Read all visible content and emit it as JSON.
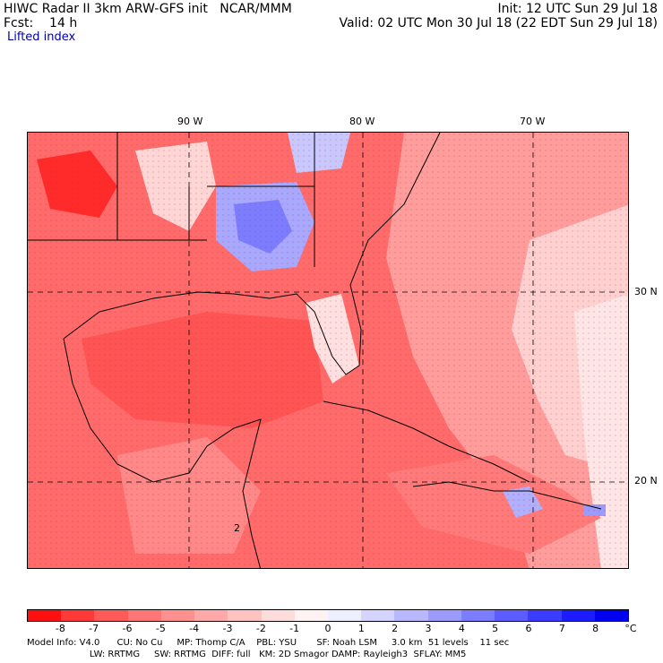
{
  "header": {
    "model_line": "HIWC Radar II 3km ARW-GFS init   NCAR/MMM",
    "forecast_line": "Fcst:    14 h",
    "init_line": "Init: 12 UTC Sun 29 Jul 18",
    "valid_line": "Valid: 02 UTC Mon 30 Jul 18 (22 EDT Sun 29 Jul 18)",
    "field_name": "Lifted index"
  },
  "map": {
    "longitude_labels": [
      "90 W",
      "80 W",
      "70 W"
    ],
    "latitude_labels": [
      "30 N",
      "20 N"
    ],
    "map_annotation": "2"
  },
  "colorbar": {
    "tick_labels": [
      "-8",
      "-7",
      "-6",
      "-5",
      "-4",
      "-3",
      "-2",
      "-1",
      "0",
      "1",
      "2",
      "3",
      "4",
      "5",
      "6",
      "7",
      "8"
    ],
    "unit": "°C",
    "colors": [
      "#ff1010",
      "#ff3838",
      "#ff5a5a",
      "#ff7676",
      "#ff9090",
      "#ffa8a8",
      "#ffc2c2",
      "#ffdcdc",
      "#fff2f2",
      "#eeeeff",
      "#d4d4ff",
      "#b8b8ff",
      "#9a9aff",
      "#7c7cff",
      "#5c5cff",
      "#3c3cff",
      "#1c1cff",
      "#0000f0"
    ]
  },
  "footer": {
    "line1": "Model Info: V4.0      CU: No Cu     MP: Thomp C/A    PBL: YSU       SF: Noah LSM     3.0 km  51 levels    11 sec",
    "line2": "                      LW: RRTMG     SW: RRTMG  DIFF: full   KM: 2D Smagor DAMP: Rayleigh3  SFLAY: MM5"
  }
}
